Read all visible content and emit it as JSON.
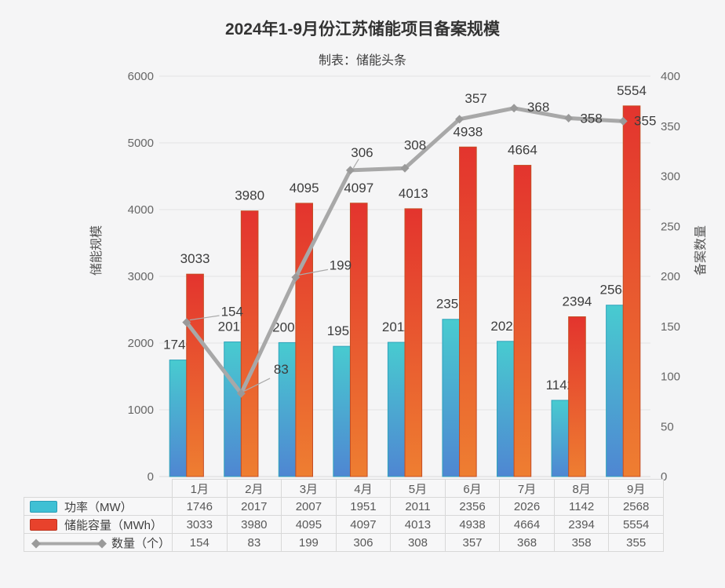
{
  "title": "2024年1-9月份江苏储能项目备案规模",
  "subtitle": "制表：储能头条",
  "chart_data": {
    "type": "combo",
    "categories": [
      "1月",
      "2月",
      "3月",
      "4月",
      "5月",
      "6月",
      "7月",
      "8月",
      "9月"
    ],
    "series": [
      {
        "name": "功率（MW）",
        "type": "bar",
        "axis": "left",
        "values": [
          1746,
          2017,
          2007,
          1951,
          2011,
          2356,
          2026,
          1142,
          2568
        ],
        "color_top": "#48cbd0",
        "color_bottom": "#4f86d2",
        "border": "#2fa3bb"
      },
      {
        "name": "储能容量（MWh）",
        "type": "bar",
        "axis": "left",
        "values": [
          3033,
          3980,
          4095,
          4097,
          4013,
          4938,
          4664,
          2394,
          5554
        ],
        "color_top": "#e3342e",
        "color_bottom": "#ee7e31",
        "border": "#c44d24"
      },
      {
        "name": "数量（个）",
        "type": "line",
        "axis": "right",
        "values": [
          154,
          83,
          199,
          306,
          308,
          357,
          368,
          358,
          355
        ],
        "color": "#a8a8a8",
        "marker_color": "#9a9a9a"
      }
    ],
    "left_axis": {
      "title": "储能规模",
      "min": 0,
      "max": 6000,
      "step": 1000
    },
    "right_axis": {
      "title": "备案数量",
      "min": 0,
      "max": 400,
      "step": 50
    },
    "grid": "horizontal",
    "legend_position": "table-first-column",
    "label_color": "#3d3d3d",
    "tick_color": "#666666",
    "grid_color": "#e4e4e4"
  }
}
